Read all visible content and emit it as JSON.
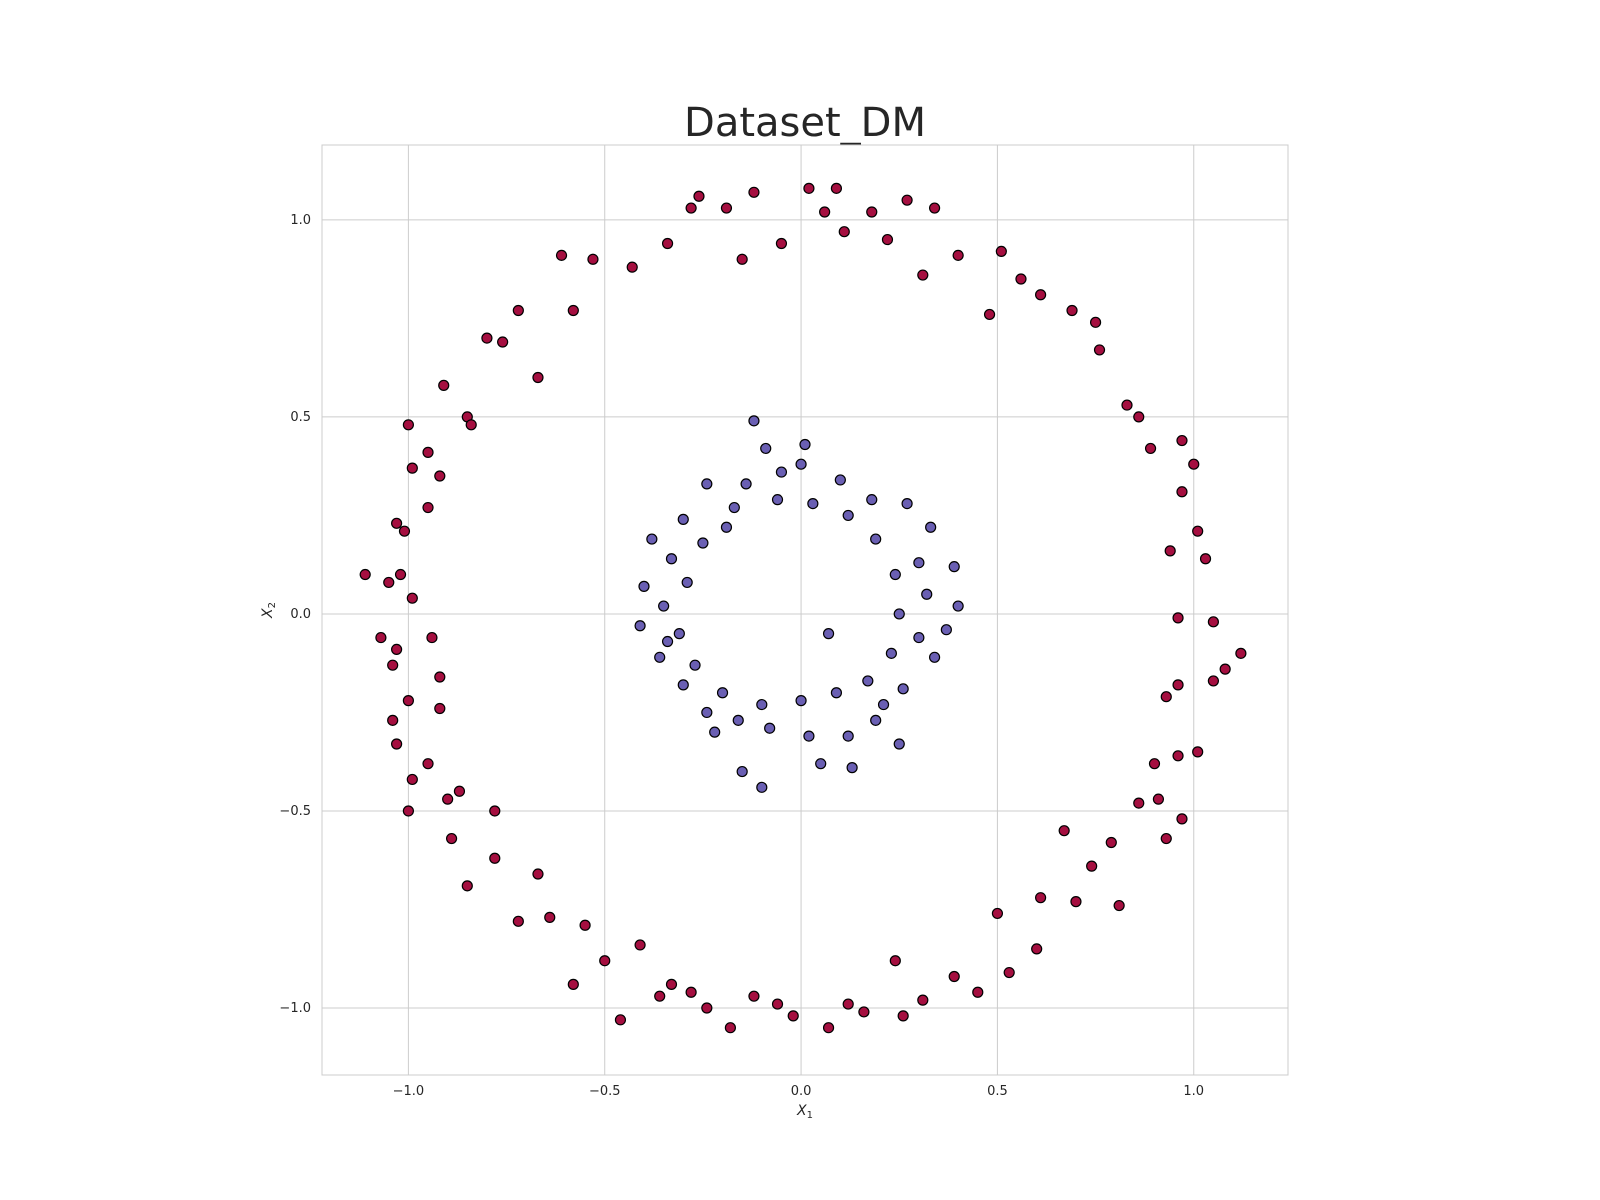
{
  "chart_data": {
    "type": "scatter",
    "title": "Dataset_DM",
    "xlabel": "X",
    "xlabel_sub": "1",
    "ylabel": "X",
    "ylabel_sub": "2",
    "xlim": [
      -1.22,
      1.24
    ],
    "ylim": [
      -1.17,
      1.19
    ],
    "xticks": [
      -1.0,
      -0.5,
      0.0,
      0.5,
      1.0
    ],
    "xtick_labels": [
      "−1.0",
      "−0.5",
      "0.0",
      "0.5",
      "1.0"
    ],
    "yticks": [
      -1.0,
      -0.5,
      0.0,
      0.5,
      1.0
    ],
    "ytick_labels": [
      "−1.0",
      "−0.5",
      "0.0",
      "0.5",
      "1.0"
    ],
    "grid": true,
    "series": [
      {
        "color": "#a50f40",
        "points": [
          [
            0.02,
            1.08
          ],
          [
            0.09,
            1.08
          ],
          [
            -0.26,
            1.06
          ],
          [
            -0.12,
            1.07
          ],
          [
            0.27,
            1.05
          ],
          [
            0.34,
            1.03
          ],
          [
            -0.28,
            1.03
          ],
          [
            -0.19,
            1.03
          ],
          [
            0.06,
            1.02
          ],
          [
            0.18,
            1.02
          ],
          [
            -0.53,
            0.9
          ],
          [
            -0.61,
            0.91
          ],
          [
            -0.72,
            0.77
          ],
          [
            -0.76,
            0.69
          ],
          [
            -0.8,
            0.7
          ],
          [
            -0.91,
            0.58
          ],
          [
            -0.85,
            0.5
          ],
          [
            -0.95,
            0.41
          ],
          [
            -1.0,
            0.48
          ],
          [
            -0.99,
            0.37
          ],
          [
            -1.01,
            0.21
          ],
          [
            -1.03,
            0.23
          ],
          [
            -1.02,
            0.1
          ],
          [
            -1.05,
            0.08
          ],
          [
            -1.11,
            0.1
          ],
          [
            -1.07,
            -0.06
          ],
          [
            -1.03,
            -0.09
          ],
          [
            -1.04,
            -0.13
          ],
          [
            -1.0,
            -0.22
          ],
          [
            -1.04,
            -0.27
          ],
          [
            -1.03,
            -0.33
          ],
          [
            -0.99,
            -0.42
          ],
          [
            -0.95,
            -0.38
          ],
          [
            -1.0,
            -0.5
          ],
          [
            -0.9,
            -0.47
          ],
          [
            -0.89,
            -0.57
          ],
          [
            -0.85,
            -0.69
          ],
          [
            -0.78,
            -0.62
          ],
          [
            -0.72,
            -0.78
          ],
          [
            -0.67,
            -0.66
          ],
          [
            -0.58,
            -0.94
          ],
          [
            -0.55,
            -0.79
          ],
          [
            -0.46,
            -1.03
          ],
          [
            -0.41,
            -0.84
          ],
          [
            -0.33,
            -0.94
          ],
          [
            -0.24,
            -1.0
          ],
          [
            -0.18,
            -1.05
          ],
          [
            -0.12,
            -0.97
          ],
          [
            -0.02,
            -1.02
          ],
          [
            0.07,
            -1.05
          ],
          [
            0.16,
            -1.01
          ],
          [
            0.26,
            -1.02
          ],
          [
            0.31,
            -0.98
          ],
          [
            0.45,
            -0.96
          ],
          [
            0.5,
            -0.76
          ],
          [
            0.53,
            -0.91
          ],
          [
            0.61,
            -0.72
          ],
          [
            0.67,
            -0.55
          ],
          [
            0.74,
            -0.64
          ],
          [
            0.81,
            -0.74
          ],
          [
            0.86,
            -0.48
          ],
          [
            0.91,
            -0.47
          ],
          [
            0.93,
            -0.57
          ],
          [
            0.97,
            -0.52
          ],
          [
            0.96,
            -0.36
          ],
          [
            1.01,
            -0.35
          ],
          [
            0.96,
            -0.18
          ],
          [
            1.05,
            -0.17
          ],
          [
            1.08,
            -0.14
          ],
          [
            1.12,
            -0.1
          ],
          [
            1.05,
            -0.02
          ],
          [
            1.03,
            0.14
          ],
          [
            1.01,
            0.21
          ],
          [
            0.97,
            0.31
          ],
          [
            1.0,
            0.38
          ],
          [
            0.97,
            0.44
          ],
          [
            0.89,
            0.42
          ],
          [
            0.86,
            0.5
          ],
          [
            0.83,
            0.53
          ],
          [
            0.76,
            0.67
          ],
          [
            0.75,
            0.74
          ],
          [
            0.69,
            0.77
          ],
          [
            0.61,
            0.81
          ],
          [
            0.56,
            0.85
          ],
          [
            0.51,
            0.92
          ],
          [
            0.48,
            0.76
          ],
          [
            0.4,
            0.91
          ],
          [
            0.31,
            0.86
          ],
          [
            0.22,
            0.95
          ],
          [
            0.11,
            0.97
          ],
          [
            -0.05,
            0.94
          ],
          [
            -0.15,
            0.9
          ],
          [
            -0.34,
            0.94
          ],
          [
            -0.43,
            0.88
          ],
          [
            -0.58,
            0.77
          ],
          [
            -0.67,
            0.6
          ],
          [
            -0.84,
            0.48
          ],
          [
            -0.92,
            0.35
          ],
          [
            -0.95,
            0.27
          ],
          [
            -0.99,
            0.04
          ],
          [
            -0.94,
            -0.06
          ],
          [
            -0.92,
            -0.16
          ],
          [
            -0.92,
            -0.24
          ],
          [
            -0.87,
            -0.45
          ],
          [
            -0.78,
            -0.5
          ],
          [
            -0.64,
            -0.77
          ],
          [
            -0.5,
            -0.88
          ],
          [
            -0.36,
            -0.97
          ],
          [
            -0.28,
            -0.96
          ],
          [
            -0.06,
            -0.99
          ],
          [
            0.12,
            -0.99
          ],
          [
            0.24,
            -0.88
          ],
          [
            0.39,
            -0.92
          ],
          [
            0.6,
            -0.85
          ],
          [
            0.7,
            -0.73
          ],
          [
            0.79,
            -0.58
          ],
          [
            0.9,
            -0.38
          ],
          [
            0.93,
            -0.21
          ],
          [
            0.96,
            -0.01
          ],
          [
            0.94,
            0.16
          ]
        ]
      },
      {
        "color": "#6a5fb3",
        "points": [
          [
            -0.12,
            0.49
          ],
          [
            0.01,
            0.43
          ],
          [
            -0.09,
            0.42
          ],
          [
            0.0,
            0.38
          ],
          [
            -0.05,
            0.36
          ],
          [
            0.1,
            0.34
          ],
          [
            0.18,
            0.29
          ],
          [
            0.27,
            0.28
          ],
          [
            0.33,
            0.22
          ],
          [
            0.39,
            0.12
          ],
          [
            0.4,
            0.02
          ],
          [
            0.37,
            -0.04
          ],
          [
            0.34,
            -0.11
          ],
          [
            0.26,
            -0.19
          ],
          [
            0.19,
            -0.27
          ],
          [
            0.12,
            -0.31
          ],
          [
            0.02,
            -0.31
          ],
          [
            -0.08,
            -0.29
          ],
          [
            -0.16,
            -0.27
          ],
          [
            -0.24,
            -0.25
          ],
          [
            -0.3,
            -0.18
          ],
          [
            -0.36,
            -0.11
          ],
          [
            -0.41,
            -0.03
          ],
          [
            -0.4,
            0.07
          ],
          [
            -0.38,
            0.19
          ],
          [
            -0.3,
            0.24
          ],
          [
            -0.24,
            0.33
          ],
          [
            -0.14,
            0.33
          ],
          [
            0.07,
            -0.05
          ],
          [
            -0.1,
            -0.44
          ],
          [
            -0.15,
            -0.4
          ],
          [
            0.05,
            -0.38
          ],
          [
            0.13,
            -0.39
          ],
          [
            0.25,
            -0.33
          ],
          [
            -0.25,
            0.18
          ],
          [
            -0.19,
            0.22
          ],
          [
            -0.29,
            0.08
          ],
          [
            -0.31,
            -0.05
          ],
          [
            -0.27,
            -0.13
          ],
          [
            -0.2,
            -0.2
          ],
          [
            -0.1,
            -0.23
          ],
          [
            0.0,
            -0.22
          ],
          [
            0.09,
            -0.2
          ],
          [
            0.17,
            -0.17
          ],
          [
            0.23,
            -0.1
          ],
          [
            0.25,
            0.0
          ],
          [
            0.24,
            0.1
          ],
          [
            0.19,
            0.19
          ],
          [
            0.12,
            0.25
          ],
          [
            0.03,
            0.28
          ],
          [
            -0.06,
            0.29
          ],
          [
            -0.17,
            0.27
          ],
          [
            -0.33,
            0.14
          ],
          [
            -0.35,
            0.02
          ],
          [
            -0.34,
            -0.07
          ],
          [
            0.3,
            0.13
          ],
          [
            0.32,
            0.05
          ],
          [
            0.3,
            -0.06
          ],
          [
            0.21,
            -0.23
          ],
          [
            -0.22,
            -0.3
          ]
        ]
      }
    ]
  }
}
